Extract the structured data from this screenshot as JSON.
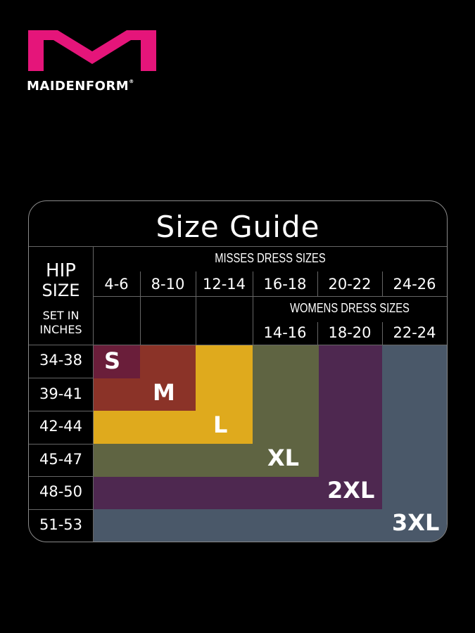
{
  "brand": {
    "name": "MAIDENFORM",
    "mark": "®",
    "color": "#e5157a"
  },
  "title": "Size Guide",
  "hip_header": {
    "line1": "HIP",
    "line2": "SIZE",
    "line3": "SET IN",
    "line4": "INCHES"
  },
  "misses": {
    "label": "MISSES DRESS SIZES",
    "columns": [
      "4-6",
      "8-10",
      "12-14",
      "16-18",
      "20-22",
      "24-26"
    ]
  },
  "womens": {
    "label": "WOMENS DRESS SIZES",
    "columns": [
      "14-16",
      "18-20",
      "22-24"
    ]
  },
  "hip_rows": [
    "34-38",
    "39-41",
    "42-44",
    "45-47",
    "48-50",
    "51-53"
  ],
  "sizes": [
    {
      "label": "S",
      "color": "#6a1e3a"
    },
    {
      "label": "M",
      "color": "#8b3328"
    },
    {
      "label": "L",
      "color": "#dfaa1d"
    },
    {
      "label": "XL",
      "color": "#5f6442"
    },
    {
      "label": "2XL",
      "color": "#4e2850"
    },
    {
      "label": "3XL",
      "color": "#4a5869"
    }
  ]
}
